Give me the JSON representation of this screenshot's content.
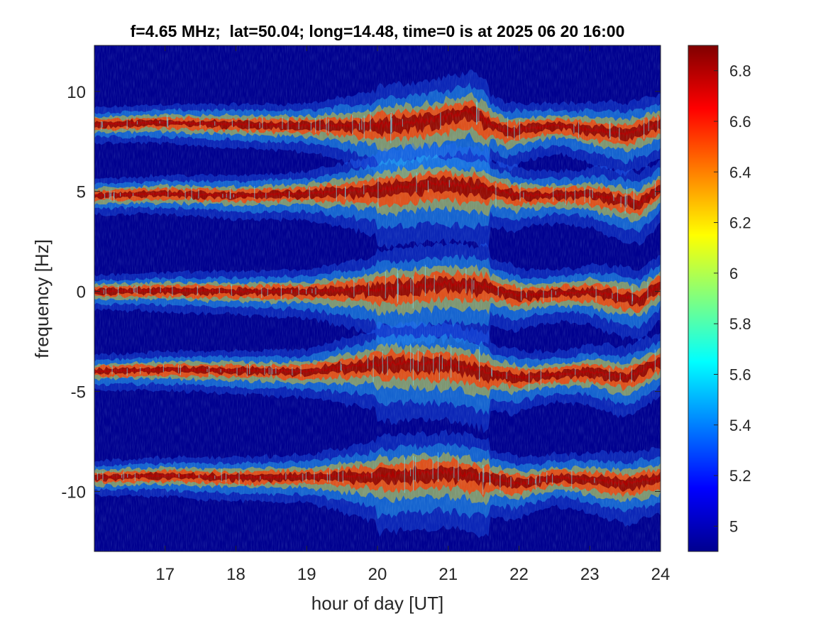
{
  "chart_data": {
    "type": "heatmap",
    "title": "f=4.65 MHz;  lat=50.04; long=14.48, time=0 is at 2025 06 20 16:00",
    "xlabel": "hour of day [UT]",
    "ylabel": "frequency [Hz]",
    "xlim": [
      16,
      24
    ],
    "ylim": [
      -13,
      12.3
    ],
    "xticks": [
      17,
      18,
      19,
      20,
      21,
      22,
      23,
      24
    ],
    "xtick_labels": [
      "17",
      "18",
      "19",
      "20",
      "21",
      "22",
      "23",
      "24"
    ],
    "yticks": [
      -10,
      -5,
      0,
      5,
      10
    ],
    "ytick_labels": [
      "-10",
      "-5",
      "0",
      "5",
      "10"
    ],
    "grid": false,
    "colormap": "jet",
    "clim": [
      4.9,
      6.9
    ],
    "colorbar_ticks": [
      5,
      5.2,
      5.4,
      5.6,
      5.8,
      6,
      6.2,
      6.4,
      6.6,
      6.8
    ],
    "colorbar_tick_labels": [
      "5",
      "5.2",
      "5.4",
      "5.6",
      "5.8",
      "6",
      "6.2",
      "6.4",
      "6.6",
      "6.8"
    ],
    "background_value": 4.9,
    "traces": [
      {
        "center_freq": 8.4,
        "points": [
          [
            16,
            8.35
          ],
          [
            17,
            8.45
          ],
          [
            18,
            8.35
          ],
          [
            19,
            8.3
          ],
          [
            20,
            8.3
          ],
          [
            20.8,
            8.6
          ],
          [
            21.3,
            9.0
          ],
          [
            21.8,
            8.0
          ],
          [
            22.5,
            8.3
          ],
          [
            23.5,
            7.9
          ],
          [
            24,
            8.4
          ]
        ]
      },
      {
        "center_freq": 4.85,
        "points": [
          [
            16,
            4.8
          ],
          [
            17,
            4.9
          ],
          [
            18,
            4.8
          ],
          [
            19,
            4.9
          ],
          [
            20,
            5.1
          ],
          [
            20.8,
            5.4
          ],
          [
            21.5,
            5.2
          ],
          [
            22,
            4.8
          ],
          [
            23,
            4.85
          ],
          [
            23.7,
            4.4
          ],
          [
            24,
            5.2
          ]
        ]
      },
      {
        "center_freq": 0.0,
        "points": [
          [
            16,
            0.0
          ],
          [
            17,
            0.05
          ],
          [
            18,
            0.0
          ],
          [
            19,
            0.0
          ],
          [
            20,
            0.1
          ],
          [
            21,
            0.4
          ],
          [
            21.5,
            0.3
          ],
          [
            22,
            -0.2
          ],
          [
            23,
            0.0
          ],
          [
            23.7,
            -0.4
          ],
          [
            24,
            0.4
          ]
        ]
      },
      {
        "center_freq": -3.95,
        "points": [
          [
            16,
            -4.0
          ],
          [
            17,
            -3.9
          ],
          [
            18,
            -3.95
          ],
          [
            19,
            -4.0
          ],
          [
            20,
            -3.6
          ],
          [
            21,
            -3.6
          ],
          [
            21.5,
            -4.0
          ],
          [
            22,
            -4.3
          ],
          [
            23,
            -4.0
          ],
          [
            23.5,
            -4.3
          ],
          [
            24,
            -3.5
          ]
        ]
      },
      {
        "center_freq": -9.3,
        "points": [
          [
            16,
            -9.3
          ],
          [
            17,
            -9.2
          ],
          [
            18,
            -9.3
          ],
          [
            19,
            -9.25
          ],
          [
            20,
            -9.2
          ],
          [
            21,
            -9.0
          ],
          [
            21.5,
            -9.3
          ],
          [
            22,
            -9.6
          ],
          [
            22.5,
            -9.3
          ],
          [
            23,
            -9.4
          ],
          [
            23.5,
            -9.6
          ],
          [
            24,
            -9.3
          ]
        ]
      }
    ]
  }
}
